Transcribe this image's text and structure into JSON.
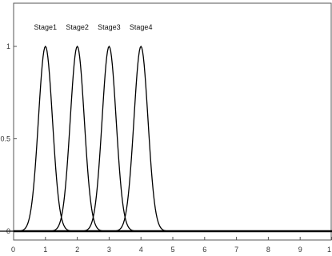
{
  "chart_data": {
    "type": "line",
    "title": "",
    "xlabel": "",
    "ylabel": "",
    "xlim": [
      0,
      10
    ],
    "ylim": [
      -0.05,
      1.15
    ],
    "grid": false,
    "x_ticks": [
      "0",
      "1",
      "2",
      "3",
      "4",
      "5",
      "6",
      "7",
      "8",
      "9",
      "1"
    ],
    "y_ticks": [
      {
        "value": 0,
        "label": "0"
      },
      {
        "value": 0.5,
        "label": "0.5"
      },
      {
        "value": 1,
        "label": "1"
      }
    ],
    "series": [
      {
        "name": "Stage1",
        "type": "gaussian",
        "center": 1,
        "sigma": 0.22,
        "amplitude": 1
      },
      {
        "name": "Stage2",
        "type": "gaussian",
        "center": 2,
        "sigma": 0.22,
        "amplitude": 1
      },
      {
        "name": "Stage3",
        "type": "gaussian",
        "center": 3,
        "sigma": 0.22,
        "amplitude": 1
      },
      {
        "name": "Stage4",
        "type": "gaussian",
        "center": 4,
        "sigma": 0.22,
        "amplitude": 1
      }
    ],
    "baseline": {
      "y": 0
    }
  }
}
